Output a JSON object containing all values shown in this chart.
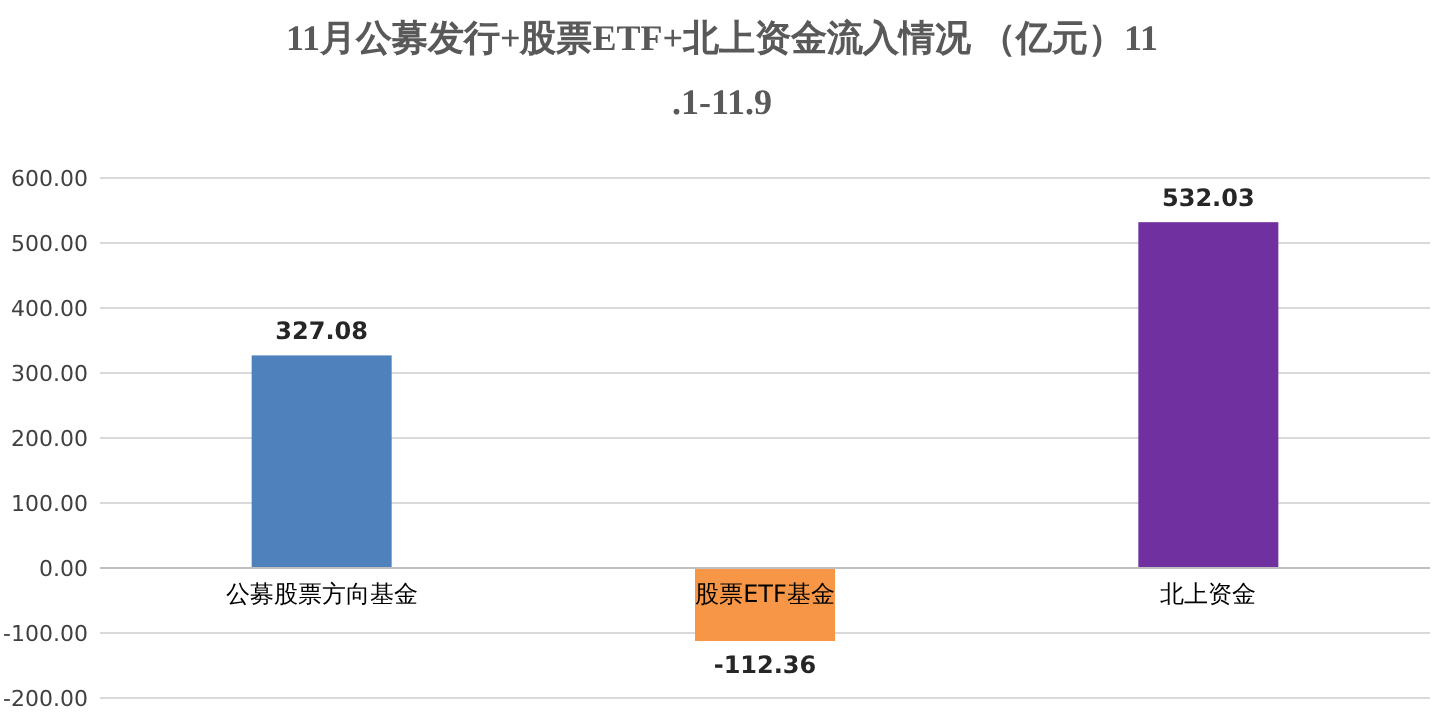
{
  "chart_data": {
    "type": "bar",
    "title": "11月公募发行+股票ETF+北上资金流入情况 （亿元）11.1-11.9",
    "categories": [
      "公募股票方向基金",
      "股票ETF基金",
      "北上资金"
    ],
    "values": [
      327.08,
      -112.36,
      532.03
    ],
    "colors": [
      "#4f81bd",
      "#f79646",
      "#7030a0"
    ],
    "ylim": [
      -200,
      600
    ],
    "yticks": [
      {
        "value": -200,
        "label": "-200.00"
      },
      {
        "value": -100,
        "label": "-100.00"
      },
      {
        "value": 0,
        "label": "0.00"
      },
      {
        "value": 100,
        "label": "100.00"
      },
      {
        "value": 200,
        "label": "200.00"
      },
      {
        "value": 300,
        "label": "300.00"
      },
      {
        "value": 400,
        "label": "400.00"
      },
      {
        "value": 500,
        "label": "500.00"
      },
      {
        "value": 600,
        "label": "600.00"
      }
    ],
    "grid": "y",
    "data_labels": true
  }
}
